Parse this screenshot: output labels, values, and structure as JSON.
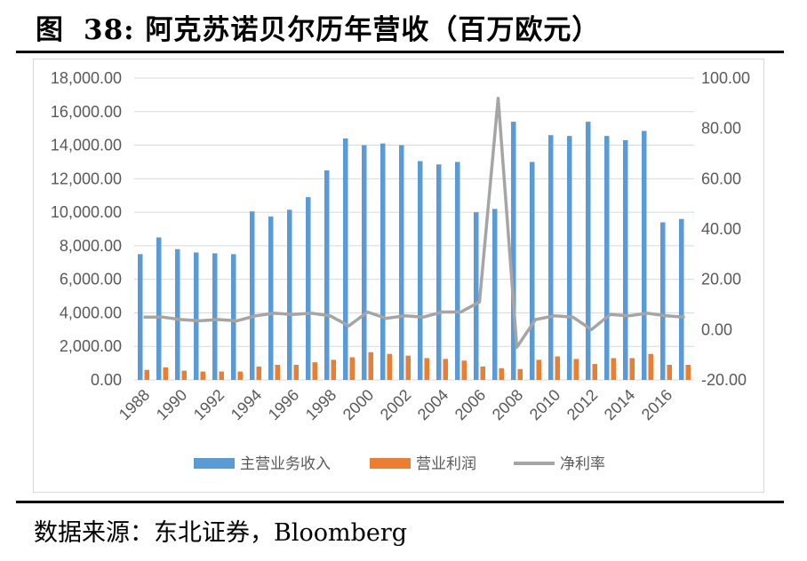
{
  "figure": {
    "label": "图",
    "number": "38:",
    "title": "阿克苏诺贝尔历年营收（百万欧元）",
    "source": "数据来源：东北证券，Bloomberg"
  },
  "colors": {
    "revenue": "#5b9bd5",
    "profit": "#ed7d31",
    "net_margin": "#a5a5a5",
    "grid": "#d9d9d9",
    "axis_text": "#595959"
  },
  "chart_data": {
    "type": "bar",
    "categories": [
      "1988",
      "1989",
      "1990",
      "1991",
      "1992",
      "1993",
      "1994",
      "1995",
      "1996",
      "1997",
      "1998",
      "1999",
      "2000",
      "2001",
      "2002",
      "2003",
      "2004",
      "2005",
      "2006",
      "2007",
      "2008",
      "2009",
      "2010",
      "2011",
      "2012",
      "2013",
      "2014",
      "2015",
      "2016",
      "2017"
    ],
    "x_tick_labels": [
      "1988",
      "1990",
      "1992",
      "1994",
      "1996",
      "1998",
      "2000",
      "2002",
      "2004",
      "2006",
      "2008",
      "2010",
      "2012",
      "2014",
      "2016"
    ],
    "series": [
      {
        "name": "主营业务收入",
        "type": "bar",
        "axis": "left",
        "values": [
          7500,
          8500,
          7800,
          7600,
          7550,
          7500,
          10050,
          9750,
          10150,
          10900,
          12500,
          14400,
          14000,
          14100,
          14000,
          13050,
          12850,
          13000,
          10000,
          10200,
          15400,
          13000,
          14600,
          14550,
          15400,
          14550,
          14300,
          14850,
          9400,
          9600
        ]
      },
      {
        "name": "营业利润",
        "type": "bar",
        "axis": "left",
        "values": [
          600,
          750,
          550,
          500,
          500,
          500,
          800,
          900,
          900,
          1050,
          1200,
          1350,
          1650,
          1550,
          1450,
          1300,
          1250,
          1150,
          800,
          700,
          650,
          1200,
          1400,
          1250,
          950,
          1300,
          1300,
          1550,
          900,
          900
        ]
      },
      {
        "name": "净利率",
        "type": "line",
        "axis": "right",
        "values": [
          5,
          5,
          4,
          3.5,
          4,
          3.5,
          5.5,
          6.5,
          6,
          6.5,
          5.5,
          1.5,
          7,
          4.5,
          5.5,
          5,
          7,
          7,
          11,
          92,
          -7,
          4,
          5.5,
          5,
          0,
          6,
          5.5,
          6.5,
          5.5,
          5
        ]
      }
    ],
    "left_axis": {
      "min": 0,
      "max": 18000,
      "step": 2000,
      "tick_labels": [
        "0.00",
        "2,000.00",
        "4,000.00",
        "6,000.00",
        "8,000.00",
        "10,000.00",
        "12,000.00",
        "14,000.00",
        "16,000.00",
        "18,000.00"
      ]
    },
    "right_axis": {
      "min": -20,
      "max": 100,
      "step": 20,
      "tick_labels": [
        "-20.00",
        "0.00",
        "20.00",
        "40.00",
        "60.00",
        "80.00",
        "100.00"
      ]
    },
    "grid": true,
    "legend": "bottom"
  }
}
